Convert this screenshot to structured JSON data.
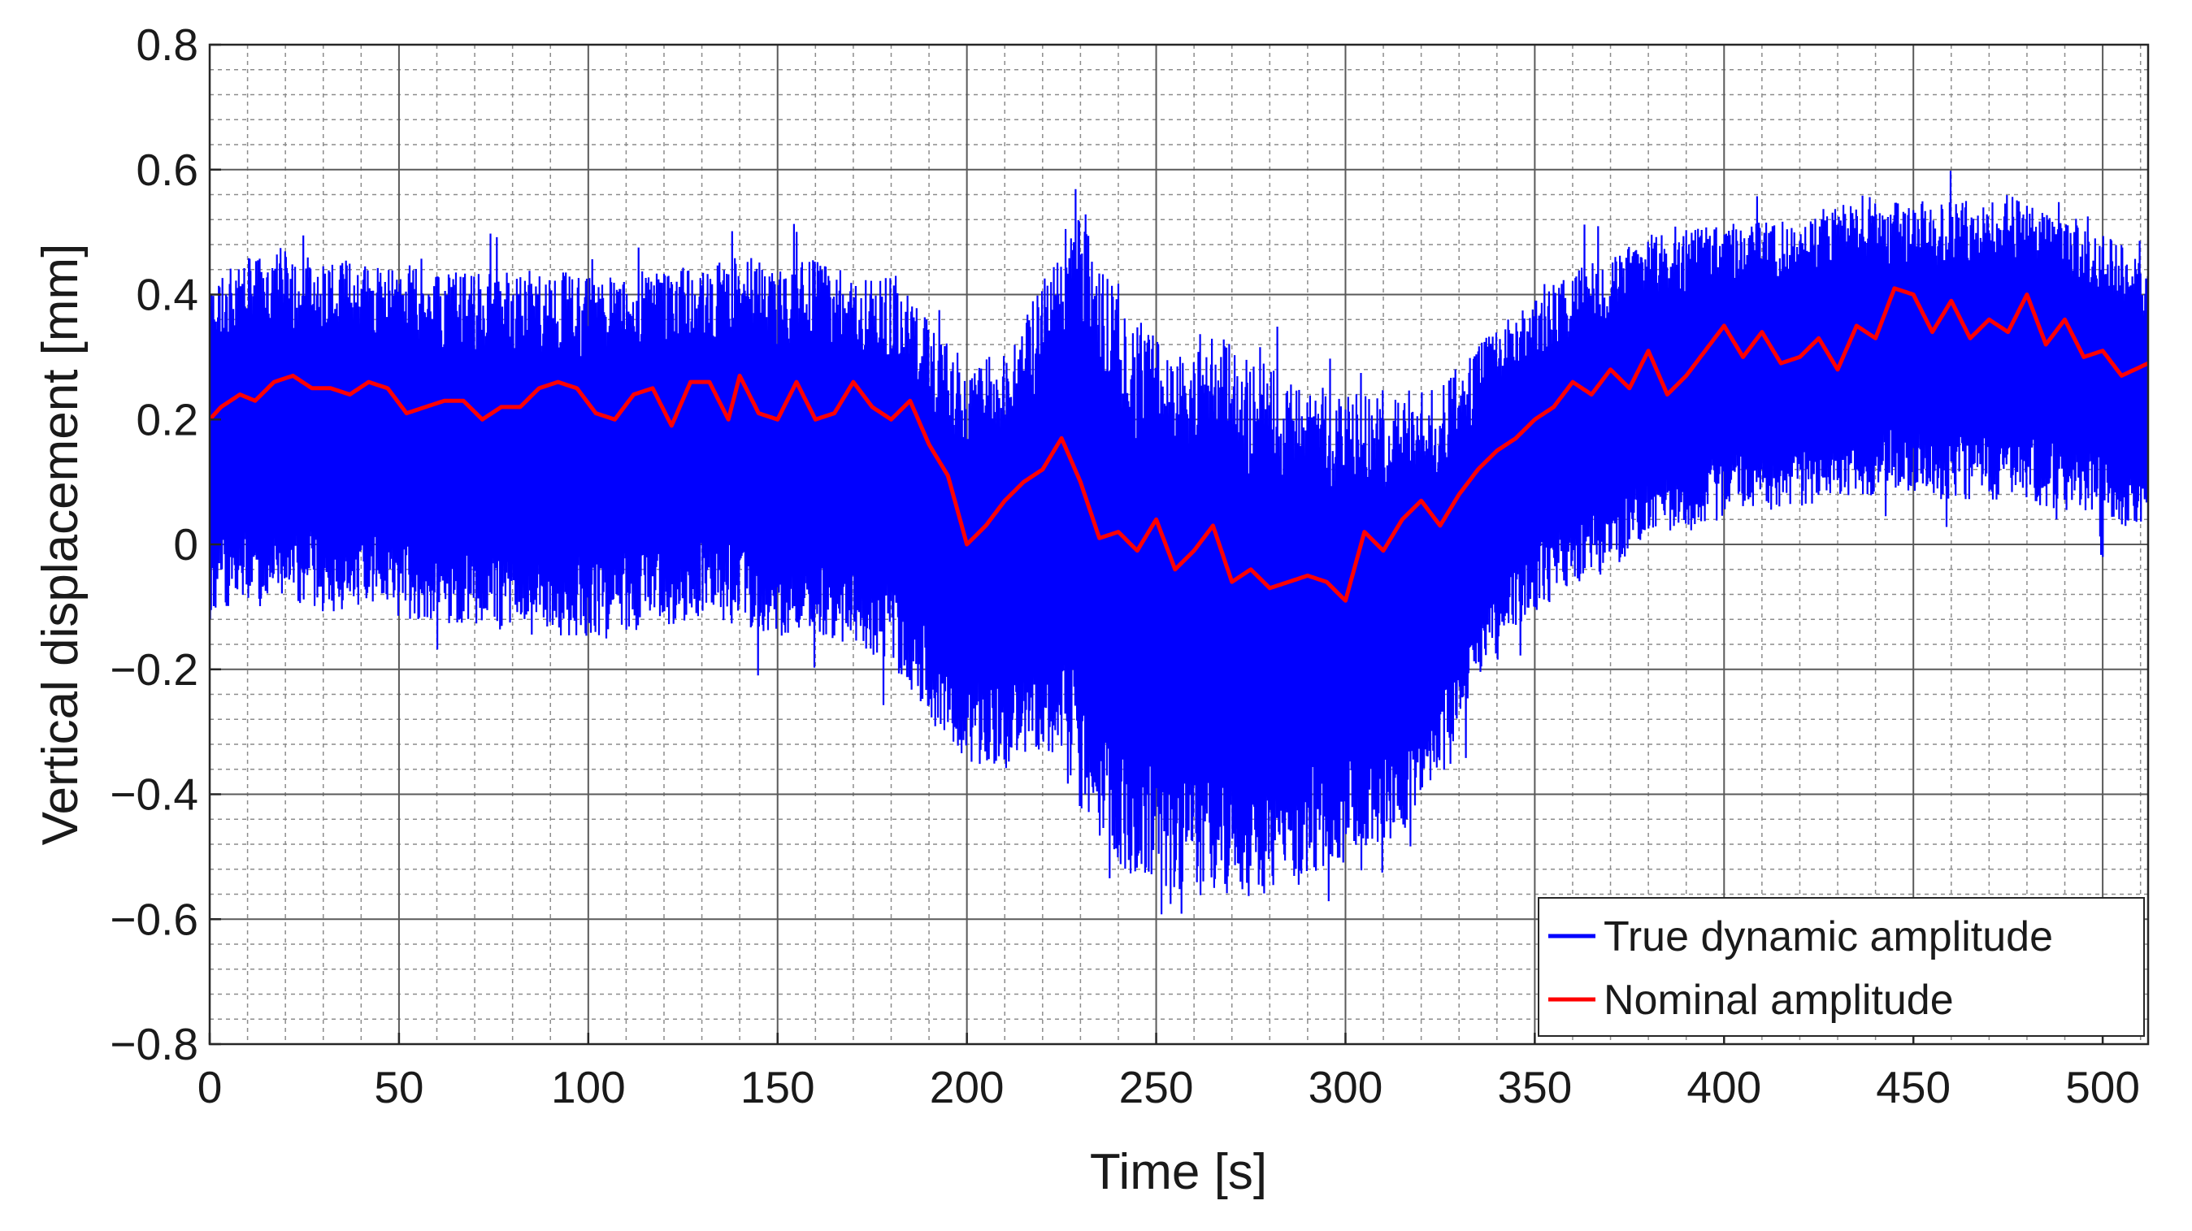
{
  "chart_data": {
    "type": "line",
    "title": "",
    "xlabel": "Time [s]",
    "ylabel": "Vertical displacement [mm]",
    "xlim": [
      0,
      512
    ],
    "ylim": [
      -0.8,
      0.8
    ],
    "x_ticks": [
      0,
      50,
      100,
      150,
      200,
      250,
      300,
      350,
      400,
      450,
      500
    ],
    "x_tick_labels": [
      "0",
      "50",
      "100",
      "150",
      "200",
      "250",
      "300",
      "350",
      "400",
      "450",
      "500"
    ],
    "y_ticks": [
      -0.8,
      -0.6,
      -0.4,
      -0.2,
      0,
      0.2,
      0.4,
      0.6,
      0.8
    ],
    "y_tick_labels": [
      "−0.8",
      "−0.6",
      "−0.4",
      "−0.2",
      "0",
      "0.2",
      "0.4",
      "0.6",
      "0.8"
    ],
    "grid": true,
    "minor_grid": true,
    "legend_position": "bottom-right",
    "series": [
      {
        "name": "True dynamic amplitude",
        "color": "#0000ff",
        "style": "dense oscillation",
        "x": [
          0,
          10,
          20,
          30,
          40,
          50,
          60,
          70,
          80,
          90,
          100,
          110,
          120,
          130,
          140,
          150,
          160,
          170,
          180,
          190,
          200,
          210,
          220,
          228,
          235,
          245,
          255,
          265,
          275,
          285,
          295,
          305,
          315,
          325,
          335,
          345,
          355,
          365,
          375,
          385,
          395,
          405,
          415,
          425,
          435,
          445,
          455,
          465,
          475,
          485,
          495,
          505,
          512
        ],
        "upper": [
          0.42,
          0.46,
          0.47,
          0.46,
          0.46,
          0.45,
          0.44,
          0.44,
          0.44,
          0.44,
          0.43,
          0.43,
          0.45,
          0.44,
          0.47,
          0.44,
          0.46,
          0.42,
          0.44,
          0.36,
          0.26,
          0.33,
          0.42,
          0.56,
          0.45,
          0.36,
          0.31,
          0.34,
          0.3,
          0.27,
          0.26,
          0.25,
          0.25,
          0.25,
          0.33,
          0.37,
          0.42,
          0.46,
          0.48,
          0.51,
          0.51,
          0.52,
          0.52,
          0.53,
          0.56,
          0.55,
          0.55,
          0.55,
          0.56,
          0.53,
          0.51,
          0.48,
          0.45
        ],
        "lower": [
          -0.12,
          -0.1,
          -0.1,
          -0.11,
          -0.1,
          -0.12,
          -0.13,
          -0.13,
          -0.14,
          -0.15,
          -0.15,
          -0.14,
          -0.13,
          -0.12,
          -0.13,
          -0.15,
          -0.14,
          -0.17,
          -0.19,
          -0.28,
          -0.35,
          -0.36,
          -0.33,
          -0.4,
          -0.48,
          -0.55,
          -0.56,
          -0.57,
          -0.57,
          -0.54,
          -0.52,
          -0.5,
          -0.46,
          -0.38,
          -0.22,
          -0.13,
          -0.09,
          -0.06,
          -0.02,
          0.01,
          0.03,
          0.06,
          0.06,
          0.06,
          0.07,
          0.09,
          0.07,
          0.07,
          0.07,
          0.06,
          0.05,
          0.03,
          0.02
        ]
      },
      {
        "name": "Nominal amplitude",
        "color": "#ff0000",
        "x": [
          0,
          3,
          8,
          12,
          17,
          22,
          27,
          32,
          37,
          42,
          47,
          52,
          57,
          62,
          67,
          72,
          77,
          82,
          87,
          92,
          97,
          102,
          107,
          112,
          117,
          122,
          127,
          132,
          137,
          140,
          145,
          150,
          155,
          160,
          165,
          170,
          175,
          180,
          185,
          190,
          195,
          200,
          205,
          210,
          215,
          220,
          225,
          230,
          235,
          240,
          245,
          250,
          255,
          260,
          265,
          270,
          275,
          280,
          285,
          290,
          295,
          300,
          305,
          310,
          315,
          320,
          325,
          330,
          335,
          340,
          345,
          350,
          355,
          360,
          365,
          370,
          375,
          380,
          385,
          390,
          395,
          400,
          405,
          410,
          415,
          420,
          425,
          430,
          435,
          440,
          445,
          450,
          455,
          460,
          465,
          470,
          475,
          480,
          485,
          490,
          495,
          500,
          505,
          512
        ],
        "y": [
          0.2,
          0.22,
          0.24,
          0.23,
          0.26,
          0.27,
          0.25,
          0.25,
          0.24,
          0.26,
          0.25,
          0.21,
          0.22,
          0.23,
          0.23,
          0.2,
          0.22,
          0.22,
          0.25,
          0.26,
          0.25,
          0.21,
          0.2,
          0.24,
          0.25,
          0.19,
          0.26,
          0.26,
          0.2,
          0.27,
          0.21,
          0.2,
          0.26,
          0.2,
          0.21,
          0.26,
          0.22,
          0.2,
          0.23,
          0.16,
          0.11,
          0.0,
          0.03,
          0.07,
          0.1,
          0.12,
          0.17,
          0.1,
          0.01,
          0.02,
          -0.01,
          0.04,
          -0.04,
          -0.01,
          0.03,
          -0.06,
          -0.04,
          -0.07,
          -0.06,
          -0.05,
          -0.06,
          -0.09,
          0.02,
          -0.01,
          0.04,
          0.07,
          0.03,
          0.08,
          0.12,
          0.15,
          0.17,
          0.2,
          0.22,
          0.26,
          0.24,
          0.28,
          0.25,
          0.31,
          0.24,
          0.27,
          0.31,
          0.35,
          0.3,
          0.34,
          0.29,
          0.3,
          0.33,
          0.28,
          0.35,
          0.33,
          0.41,
          0.4,
          0.34,
          0.39,
          0.33,
          0.36,
          0.34,
          0.4,
          0.32,
          0.36,
          0.3,
          0.31,
          0.27,
          0.29
        ]
      }
    ]
  }
}
